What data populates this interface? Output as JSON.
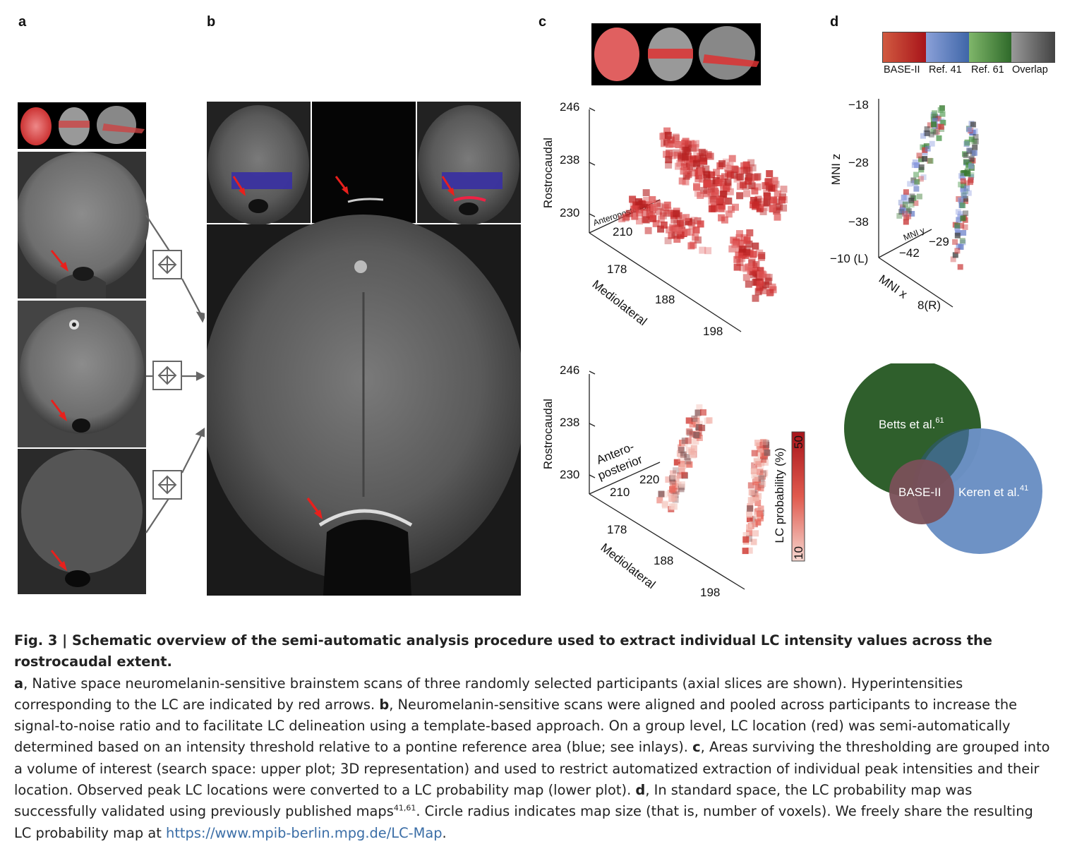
{
  "panel_labels": {
    "a": "a",
    "b": "b",
    "c": "c",
    "d": "d"
  },
  "panel_c_upper": {
    "z_label": "Rostrocaudal",
    "z_ticks": [
      "246",
      "238",
      "230"
    ],
    "ap_label": "Anteroposterior",
    "ap_tick": "210",
    "ml_label": "Mediolateral",
    "ml_ticks": [
      "178",
      "188",
      "198"
    ]
  },
  "panel_c_lower": {
    "z_label": "Rostrocaudal",
    "z_ticks": [
      "246",
      "238",
      "230"
    ],
    "ap_label_1": "Antero-",
    "ap_label_2": "posterior",
    "ap_ticks": [
      "220",
      "210"
    ],
    "ml_label": "Mediolateral",
    "ml_ticks": [
      "178",
      "188",
      "198"
    ],
    "colorbar_label": "LC probability (%)",
    "colorbar_max": "50",
    "colorbar_min": "10"
  },
  "panel_d_legend": {
    "items": [
      {
        "label": "BASE-II",
        "color": "#b5261e"
      },
      {
        "label": "Ref. 41",
        "color": "#3f66a8"
      },
      {
        "label": "Ref. 61",
        "color": "#3b7a33"
      },
      {
        "label": "Overlap",
        "color": "#555555"
      }
    ]
  },
  "panel_d_plot": {
    "z_label": "MNI z",
    "z_ticks": [
      "−18",
      "−28",
      "−38"
    ],
    "y_label": "MNI y",
    "y_ticks": [
      "−42",
      "−29"
    ],
    "x_label": "MNI x",
    "x_ticks": [
      "−10 (L)",
      "8(R)"
    ]
  },
  "venn": {
    "betts": "Betts et al.",
    "betts_ref": "61",
    "keren": "Keren et al.",
    "keren_ref": "41",
    "base": "BASE-II",
    "colors": {
      "betts": "#2f5f2c",
      "keren": "#6b90c4",
      "base": "#7a5059"
    }
  },
  "caption": {
    "fig": "Fig. 3 | ",
    "title": "Schematic overview of the semi-automatic analysis procedure used to extract individual LC intensity values across the rostrocaudal extent.",
    "a_label": "a",
    "a_text": ", Native space neuromelanin-sensitive brainstem scans of three randomly selected participants (axial slices are shown). Hyperintensities corresponding to the LC are indicated by red arrows. ",
    "b_label": "b",
    "b_text": ", Neuromelanin-sensitive scans were aligned and pooled across participants to increase the signal-to-noise ratio and to facilitate LC delineation using a template-based approach. On a group level, LC location (red) was semi-automatically determined based on an intensity threshold relative to a pontine reference area (blue; see inlays). ",
    "c_label": "c",
    "c_text": ", Areas surviving the thresholding are grouped into a volume of interest (search space: upper plot; 3D representation) and used to restrict automatized extraction of individual peak intensities and their location. Observed peak LC locations were converted to a LC probability map (lower plot). ",
    "d_label": "d",
    "d_text": ", In standard space, the LC probability map was successfully validated using previously published maps",
    "d_refs": "41,61",
    "d_text2": ". Circle radius indicates map size (that is, number of voxels). We freely share the resulting LC probability map at ",
    "link": "https://www.mpib-berlin.mpg.de/LC-Map",
    "end": "."
  }
}
